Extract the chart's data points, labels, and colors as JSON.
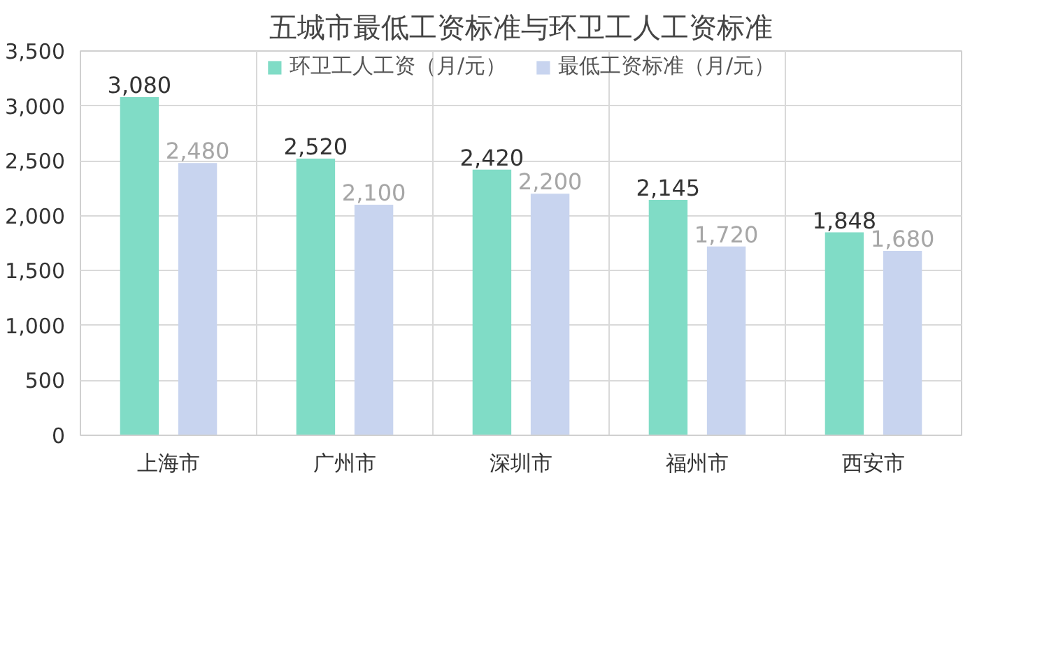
{
  "chart_data": {
    "type": "bar",
    "title": "五城市最低工资标准与环卫工人工资标准",
    "categories": [
      "上海市",
      "广州市",
      "深圳市",
      "福州市",
      "西安市"
    ],
    "series": [
      {
        "name": "环卫工人工资（月/元）",
        "color": "#80dcc6",
        "values": [
          3080,
          2520,
          2420,
          2145,
          1848
        ],
        "value_labels": [
          "3,080",
          "2,520",
          "2,420",
          "2,145",
          "1,848"
        ]
      },
      {
        "name": "最低工资标准（月/元）",
        "color": "#c8d4ef",
        "values": [
          2480,
          2100,
          2200,
          1720,
          1680
        ],
        "value_labels": [
          "2,480",
          "2,100",
          "2,200",
          "1,720",
          "1,680"
        ]
      }
    ],
    "ylim": [
      0,
      3500
    ],
    "yticks": [
      {
        "value": 0,
        "label": "0"
      },
      {
        "value": 500,
        "label": "500"
      },
      {
        "value": 1000,
        "label": "1,000"
      },
      {
        "value": 1500,
        "label": "1,500"
      },
      {
        "value": 2000,
        "label": "2,000"
      },
      {
        "value": 2500,
        "label": "2,500"
      },
      {
        "value": 3000,
        "label": "3,000"
      },
      {
        "value": 3500,
        "label": "3,500"
      }
    ],
    "grid": true,
    "legend": "top"
  }
}
